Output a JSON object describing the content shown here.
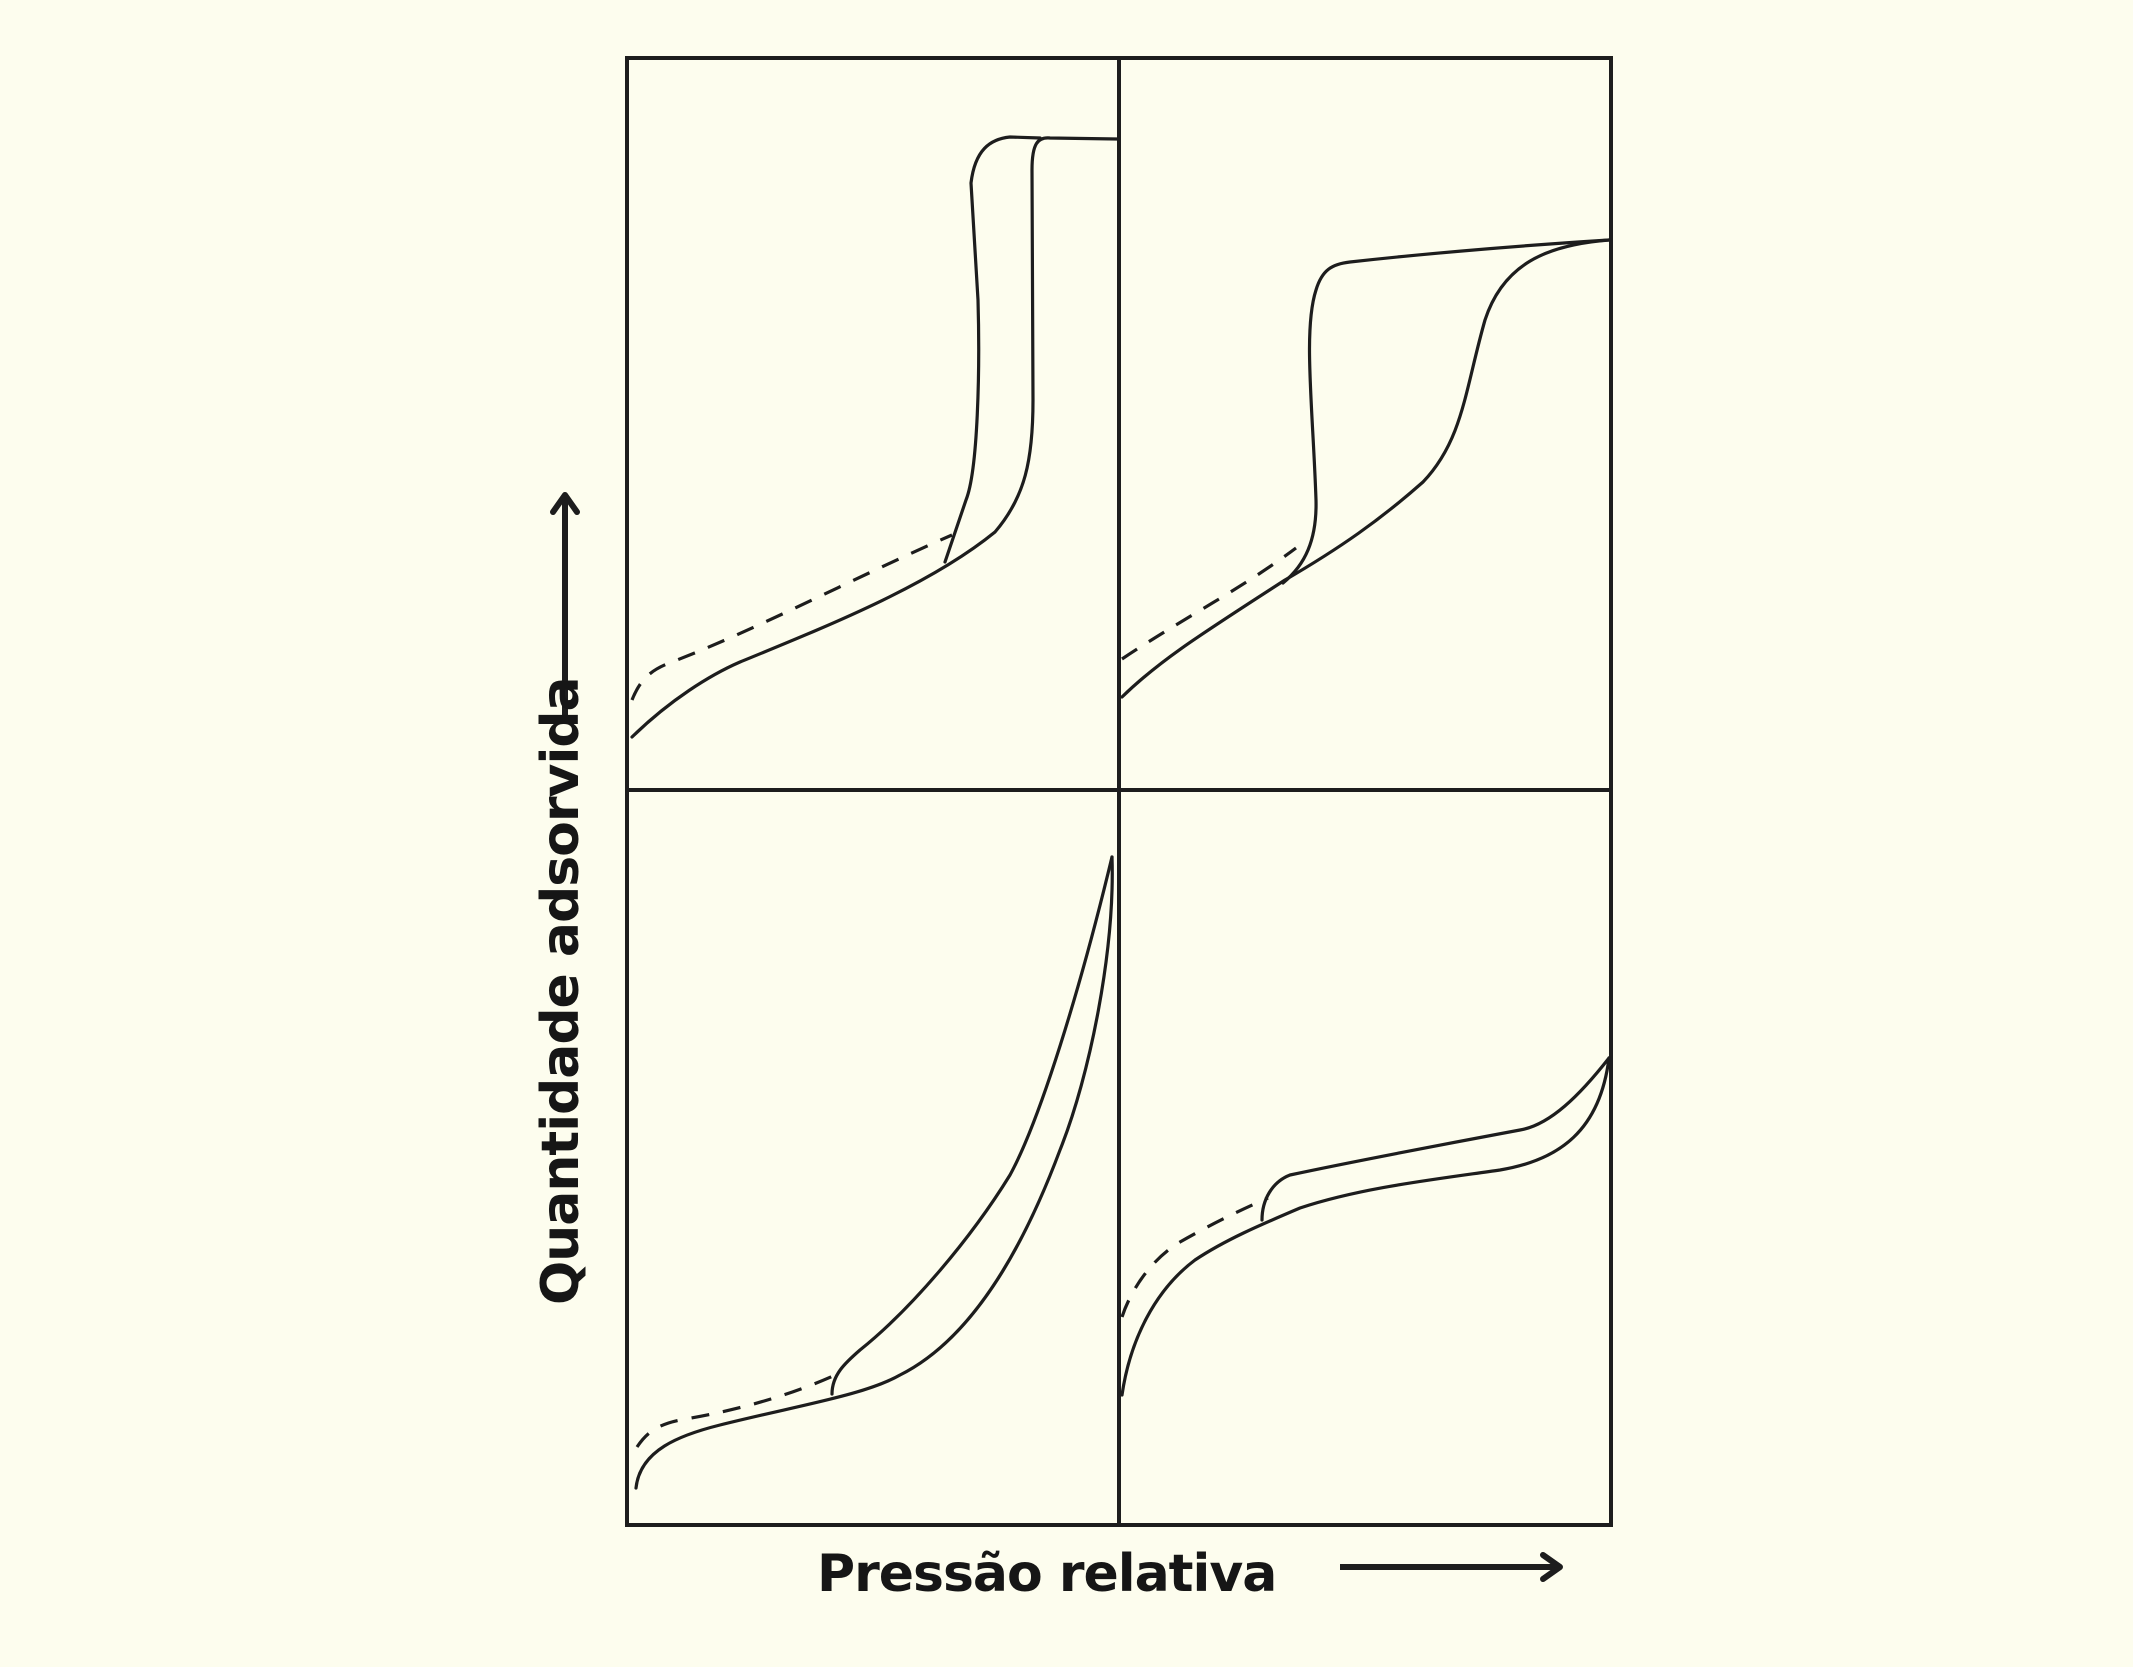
{
  "axes": {
    "x_label": "Pressão relativa",
    "y_label": "Quantidade adsorvida"
  },
  "panels": [
    {
      "id": "top-left",
      "curves": [
        "adsorption",
        "desorption",
        "extrapolated"
      ]
    },
    {
      "id": "top-right",
      "curves": [
        "adsorption",
        "desorption",
        "extrapolated"
      ]
    },
    {
      "id": "bottom-left",
      "curves": [
        "adsorption",
        "desorption",
        "extrapolated"
      ]
    },
    {
      "id": "bottom-right",
      "curves": [
        "adsorption",
        "desorption",
        "extrapolated"
      ]
    }
  ],
  "colors": {
    "background": "#fdfdee",
    "ink": "#1d1d1d"
  },
  "icons": {
    "x_arrow": "arrow-right-icon",
    "y_arrow": "arrow-up-icon"
  }
}
